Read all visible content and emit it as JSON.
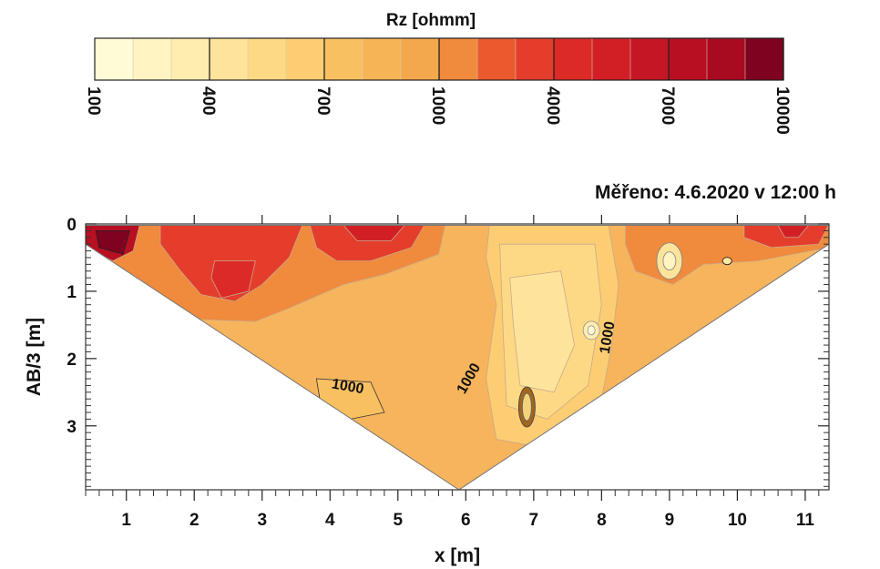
{
  "chart_data": {
    "type": "heatmap",
    "title": "Měřeno: 4.6.2020 v 12:00 h",
    "xlabel": "x [m]",
    "ylabel": "AB/3 [m]",
    "xlim": [
      0.4,
      11.35
    ],
    "ylim": [
      3.95,
      0
    ],
    "x_ticks": [
      "1",
      "2",
      "3",
      "4",
      "5",
      "6",
      "7",
      "8",
      "9",
      "10",
      "11"
    ],
    "y_ticks": [
      "0",
      "1",
      "2",
      "3"
    ],
    "colorbar": {
      "label": "Rz [ohmm]",
      "tick_labels": [
        "100",
        "400",
        "700",
        "1000",
        "4000",
        "7000",
        "10000"
      ],
      "tick_values": [
        100,
        400,
        700,
        1000,
        4000,
        7000,
        10000
      ],
      "colors": [
        "#fffbd6",
        "#fff4c2",
        "#ffedaf",
        "#fee49b",
        "#fdd985",
        "#fccd72",
        "#f9c062",
        "#f7b457",
        "#f4a84c",
        "#f08a3c",
        "#ea5a2e",
        "#e43d2c",
        "#dc2a27",
        "#d21f26",
        "#c41624",
        "#b80f22",
        "#a80a20",
        "#7f0220"
      ]
    },
    "contour_labels": [
      "1000",
      "1000",
      "1000"
    ],
    "section": {
      "x_left": 0.4,
      "x_apex": 5.9,
      "x_right": 11.35,
      "max_depth": 3.95
    }
  }
}
